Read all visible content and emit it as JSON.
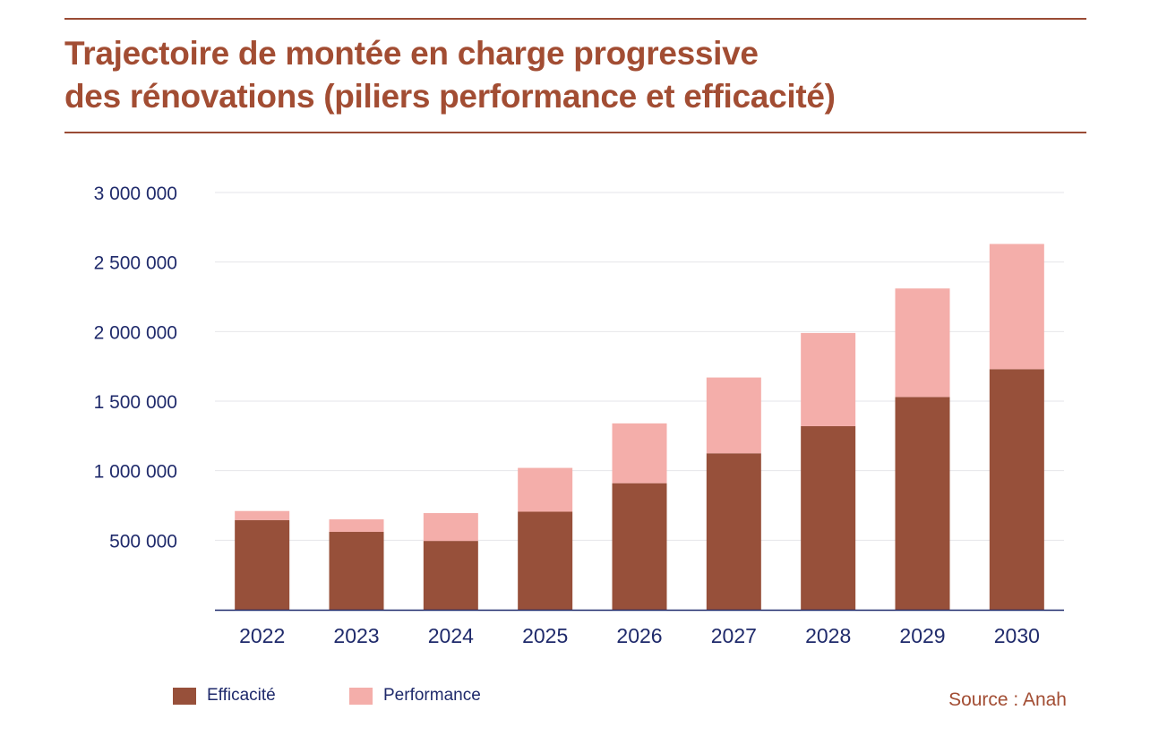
{
  "title_lines": [
    "Trajectoire de montée en charge progressive",
    "des rénovations (piliers performance et efficacité)"
  ],
  "source": "Source : Anah",
  "colors": {
    "efficacite": "#97503a",
    "performance": "#f4aeaa",
    "title": "#a24d33",
    "axis_text": "#1f2a6b",
    "grid": "#e6e6ea",
    "axis": "#1f2a6b"
  },
  "chart_data": {
    "type": "bar",
    "stacked": true,
    "categories": [
      "2022",
      "2023",
      "2024",
      "2025",
      "2026",
      "2027",
      "2028",
      "2029",
      "2030"
    ],
    "series": [
      {
        "name": "Efficacité",
        "values": [
          645000,
          560000,
          495000,
          705000,
          910000,
          1125000,
          1320000,
          1530000,
          1730000
        ]
      },
      {
        "name": "Performance",
        "values": [
          65000,
          90000,
          200000,
          315000,
          430000,
          545000,
          670000,
          780000,
          900000
        ]
      }
    ],
    "ylim": [
      0,
      3000000
    ],
    "yticks": [
      500000,
      1000000,
      1500000,
      2000000,
      2500000,
      3000000
    ],
    "ytick_labels": [
      "500 000",
      "1 000 000",
      "1 500 000",
      "2 000 000",
      "2 500 000",
      "3 000 000"
    ],
    "grid": true,
    "legend_position": "bottom-left"
  }
}
